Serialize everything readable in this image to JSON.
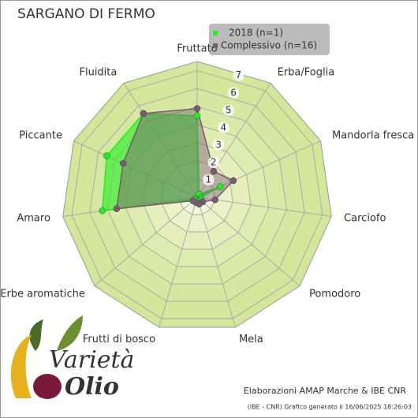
{
  "chart_data": {
    "type": "radar",
    "title": "SARGANO DI FERMO",
    "categories": [
      "Fruttato",
      "Erba/Foglia",
      "Mandorla fresca",
      "Carciofo",
      "Pomodoro",
      "Mela",
      "Frutti di bosco",
      "Erbe aromatiche",
      "Amaro",
      "Piccante",
      "Fluidita"
    ],
    "series": [
      {
        "name": "2018 (n=1)",
        "color": "#22ee22",
        "values": [
          4.5,
          0.2,
          1.4,
          0.2,
          0.2,
          0.2,
          0.2,
          0.2,
          5.3,
          5.5,
          5.5
        ]
      },
      {
        "name": "Complessivo (n=16)",
        "color": "#7a5a6e",
        "values": [
          4.9,
          1.7,
          2.2,
          1.0,
          0.4,
          0.4,
          0.3,
          0.3,
          4.5,
          4.5,
          5.5
        ]
      }
    ],
    "ylim": [
      0,
      7.5
    ],
    "yticks": [
      1,
      2,
      3,
      4,
      5,
      6,
      7
    ],
    "grid": true,
    "legend": "top-right",
    "footer": {
      "credit": "Elaborazioni AMAP Marche & IBE CNR",
      "generated": "(IBE - CNR) Grafico generato il 16/06/2025 18:26:03"
    },
    "logo": {
      "word1": "Varietà",
      "word2": "Olio"
    }
  }
}
